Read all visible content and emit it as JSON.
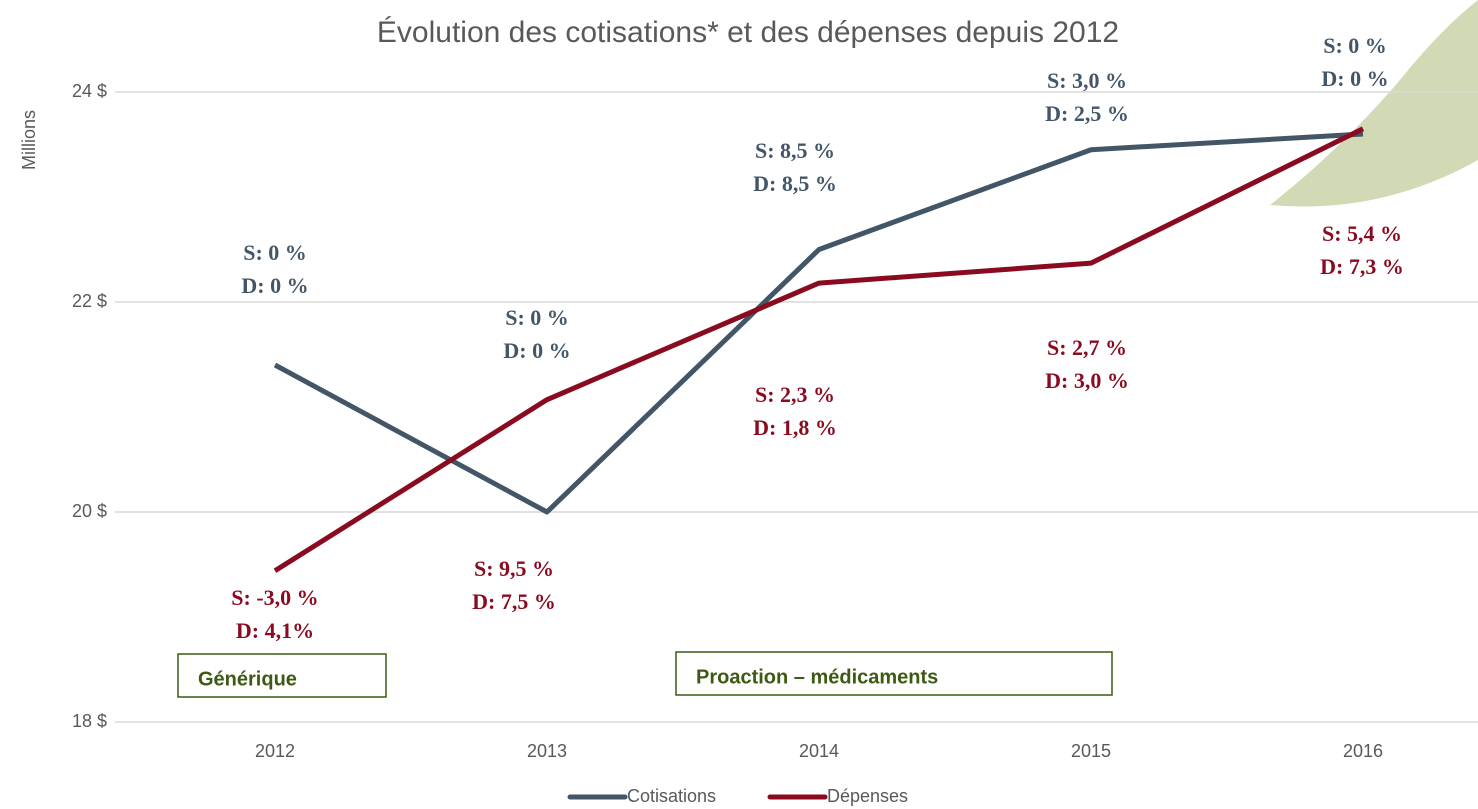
{
  "chart_data": {
    "type": "line",
    "title": "Évolution des cotisations* et des dépenses depuis 2012",
    "y_label": "Millions",
    "categories": [
      "2012",
      "2013",
      "2014",
      "2015",
      "2016"
    ],
    "series": [
      {
        "name": "Cotisations",
        "color": "#435668",
        "values": [
          21.4,
          20.0,
          22.5,
          23.45,
          23.6
        ]
      },
      {
        "name": "Dépenses",
        "color": "#8a0b1f",
        "values": [
          19.44,
          21.07,
          22.18,
          22.37,
          23.65
        ]
      }
    ],
    "ylim": [
      18,
      24.5
    ],
    "yticks": [
      {
        "value": 18,
        "label": "18 $"
      },
      {
        "value": 20,
        "label": "20 $"
      },
      {
        "value": 22,
        "label": "22 $"
      },
      {
        "value": 24,
        "label": "24 $"
      }
    ],
    "grid": true,
    "legend": "bottom",
    "annotations": [
      {
        "lines": [
          "S: 0 %",
          "D: 0 %"
        ],
        "color": "#435668"
      },
      {
        "lines": [
          "S: 0 %",
          "D: 0 %"
        ],
        "color": "#435668"
      },
      {
        "lines": [
          "S: 8,5 %",
          "D: 8,5 %"
        ],
        "color": "#435668"
      },
      {
        "lines": [
          "S: 3,0 %",
          "D: 2,5 %"
        ],
        "color": "#435668"
      },
      {
        "lines": [
          "S: 0 %",
          "D: 0 %"
        ],
        "color": "#435668"
      },
      {
        "lines": [
          "S: -3,0 %",
          "D: 4,1%"
        ],
        "color": "#8a0b1f"
      },
      {
        "lines": [
          "S: 9,5 %",
          "D: 7,5 %"
        ],
        "color": "#8a0b1f"
      },
      {
        "lines": [
          "S: 2,3 %",
          "D: 1,8 %"
        ],
        "color": "#8a0b1f"
      },
      {
        "lines": [
          "S: 2,7 %",
          "D: 3,0 %"
        ],
        "color": "#8a0b1f"
      },
      {
        "lines": [
          "S: 5,4 %",
          "D: 7,3 %"
        ],
        "color": "#8a0b1f"
      }
    ],
    "boxes": [
      {
        "text": "Générique",
        "color": "#3d5a12"
      },
      {
        "text": "Proaction – médicaments",
        "color": "#3d5a12"
      }
    ]
  }
}
